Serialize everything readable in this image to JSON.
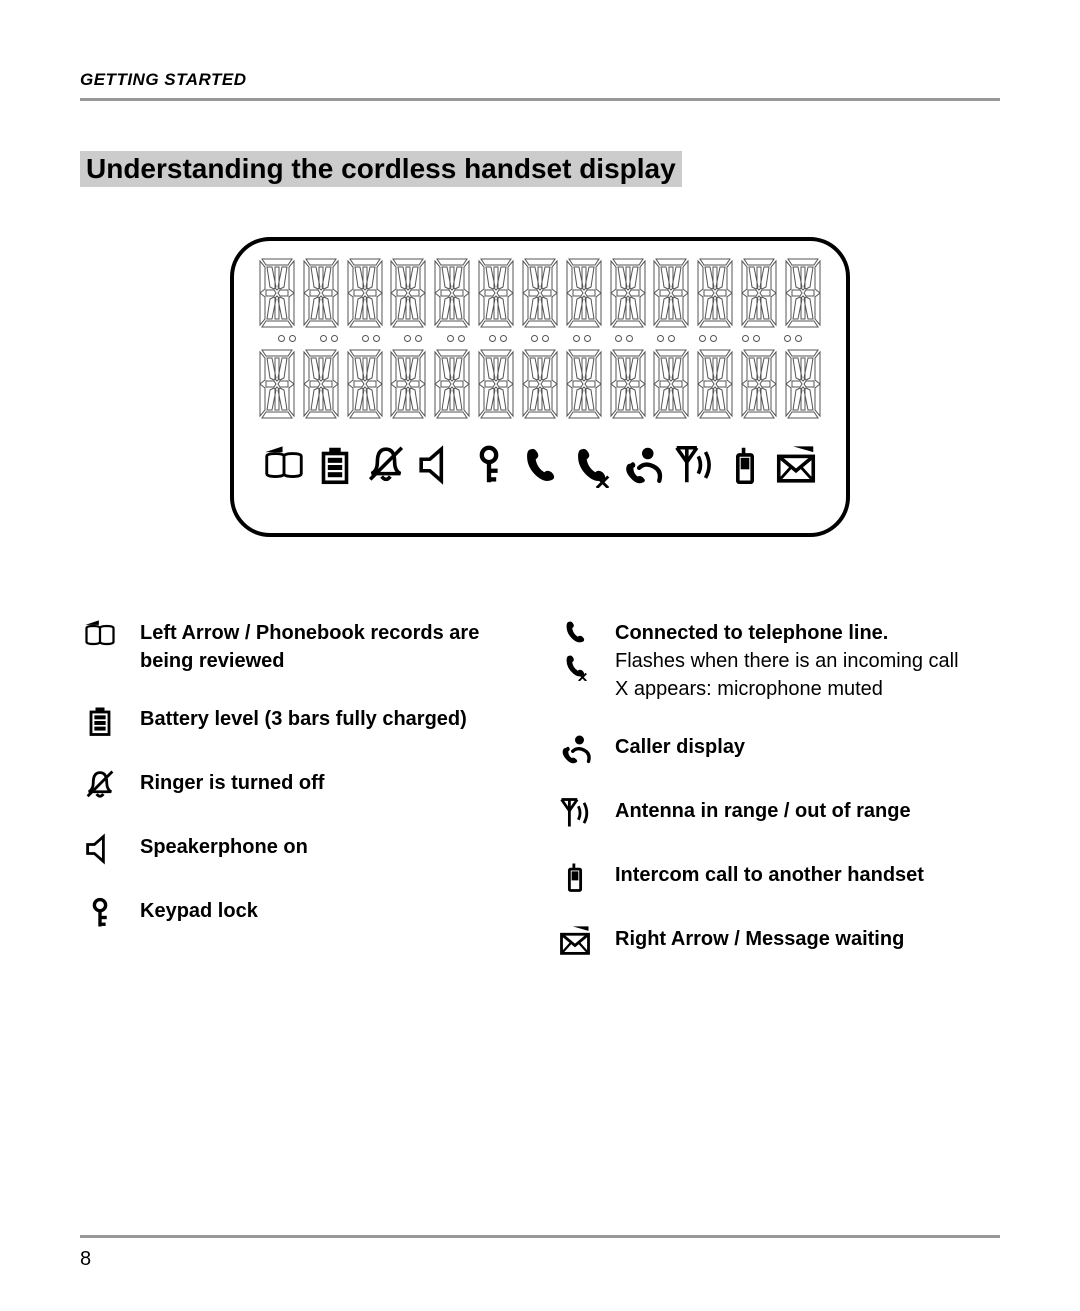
{
  "header": {
    "section": "GETTING STARTED"
  },
  "title": "Understanding the cordless handset display",
  "display": {
    "segment_columns": 13,
    "icons": [
      "phonebook",
      "battery",
      "ringer-off",
      "speaker",
      "key",
      "handset",
      "handset-x",
      "caller",
      "antenna",
      "intercom",
      "message"
    ]
  },
  "legend": {
    "left": [
      {
        "icon": "phonebook",
        "primary": "Left Arrow / Phonebook records are being reviewed"
      },
      {
        "icon": "battery",
        "primary": "Battery level",
        "primary2": "(3 bars fully charged)"
      },
      {
        "icon": "ringer-off",
        "primary": "Ringer is turned off"
      },
      {
        "icon": "speaker",
        "primary": "Speakerphone on"
      },
      {
        "icon": "key",
        "primary": "Keypad lock"
      }
    ],
    "right": [
      {
        "icon": "handset",
        "icon2": "handset-x",
        "primary": "Connected to telephone line.",
        "sub1": "Flashes when there is an incoming call",
        "sub2": "X appears: microphone muted"
      },
      {
        "icon": "caller",
        "primary": "Caller display"
      },
      {
        "icon": "antenna",
        "primary": "Antenna in range / out of range"
      },
      {
        "icon": "intercom",
        "primary": "Intercom call to another handset"
      },
      {
        "icon": "message",
        "primary": "Right Arrow / Message waiting"
      }
    ]
  },
  "footer": {
    "page_number": "8"
  }
}
